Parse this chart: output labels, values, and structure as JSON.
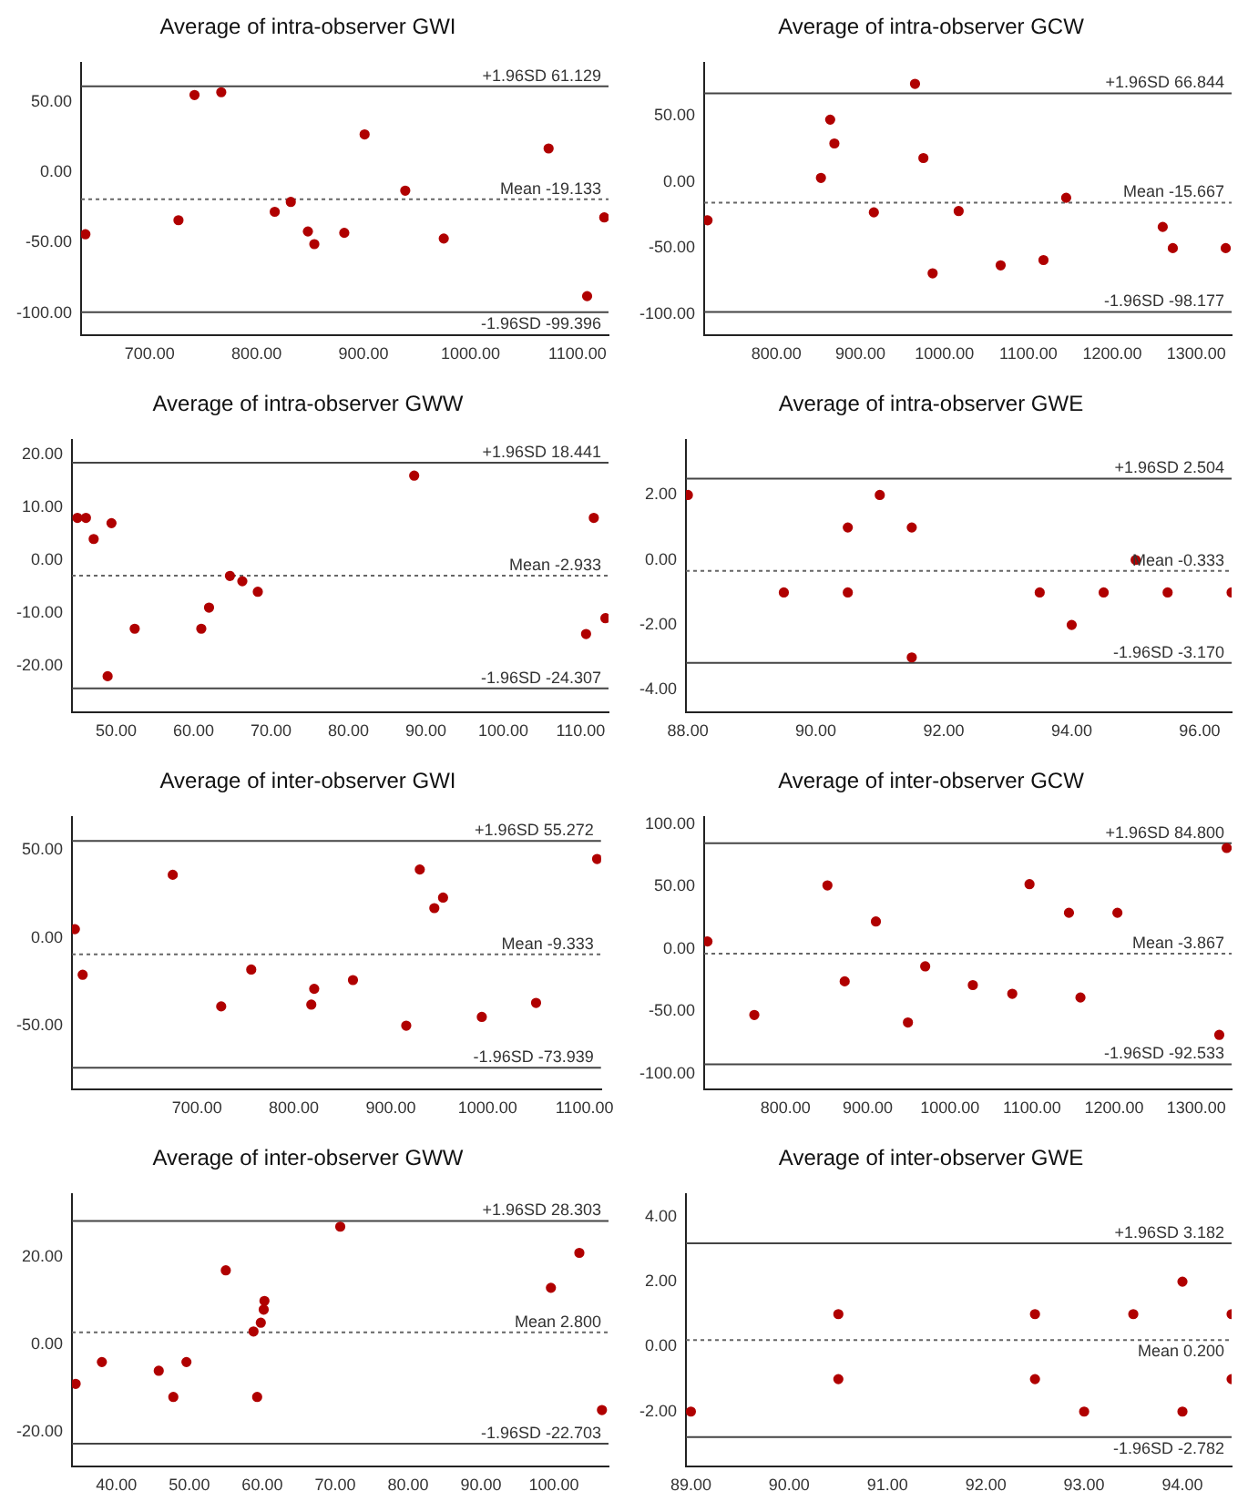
{
  "chart_data": [
    {
      "type": "scatter",
      "title": "Average of intra-observer GWI",
      "marker": "circle",
      "color": "#b00000",
      "x": [
        640,
        727,
        742,
        767,
        817,
        832,
        848,
        854,
        882,
        901,
        939,
        975,
        1073,
        1109,
        1125
      ],
      "values": [
        -44,
        -34,
        55,
        57,
        -28,
        -21,
        -42,
        -51,
        -43,
        27,
        -13,
        -47,
        17,
        -88,
        -32
      ],
      "xlim": [
        636,
        1129
      ],
      "ylim": [
        -116,
        78
      ],
      "xticks": [
        {
          "value": 700,
          "label": "700.00"
        },
        {
          "value": 800,
          "label": "800.00"
        },
        {
          "value": 900,
          "label": "900.00"
        },
        {
          "value": 1000,
          "label": "1000.00"
        },
        {
          "value": 1100,
          "label": "1100.00"
        }
      ],
      "yticks": [
        {
          "value": 50,
          "label": "50.00"
        },
        {
          "value": 0,
          "label": "0.00"
        },
        {
          "value": -50,
          "label": "-50.00"
        },
        {
          "value": -100,
          "label": "-100.00"
        }
      ],
      "ref_lines": [
        {
          "axis": "y",
          "value": 61.129,
          "label": "+1.96SD 61.129",
          "color": "#444444",
          "line_style": "solid"
        },
        {
          "axis": "y",
          "value": -19.133,
          "label": "Mean -19.133",
          "color": "#666666",
          "line_style": "dotted"
        },
        {
          "axis": "y",
          "value": -99.396,
          "label": "-1.96SD -99.396",
          "color": "#444444",
          "line_style": "solid"
        }
      ]
    },
    {
      "type": "scatter",
      "title": "Average of intra-observer GCW",
      "marker": "circle",
      "color": "#b00000",
      "x": [
        718,
        853,
        864,
        869,
        916,
        965,
        975,
        986,
        1017,
        1067,
        1118,
        1145,
        1260,
        1272,
        1335
      ],
      "values": [
        -29,
        3,
        47,
        29,
        -23,
        74,
        18,
        -69,
        -22,
        -63,
        -59,
        -12,
        -34,
        -50,
        -50
      ],
      "xlim": [
        714,
        1342
      ],
      "ylim": [
        -116,
        90
      ],
      "xticks": [
        {
          "value": 800,
          "label": "800.00"
        },
        {
          "value": 900,
          "label": "900.00"
        },
        {
          "value": 1000,
          "label": "1000.00"
        },
        {
          "value": 1100,
          "label": "1100.00"
        },
        {
          "value": 1200,
          "label": "1200.00"
        },
        {
          "value": 1300,
          "label": "1300.00"
        }
      ],
      "yticks": [
        {
          "value": 50,
          "label": "50.00"
        },
        {
          "value": 0,
          "label": "0.00"
        },
        {
          "value": -50,
          "label": "-50.00"
        },
        {
          "value": -100,
          "label": "-100.00"
        }
      ],
      "ref_lines": [
        {
          "axis": "y",
          "value": 66.844,
          "label": "+1.96SD 66.844",
          "color": "#444444",
          "line_style": "solid"
        },
        {
          "axis": "y",
          "value": -15.667,
          "label": "Mean -15.667",
          "color": "#666666",
          "line_style": "dotted"
        },
        {
          "axis": "y",
          "value": -98.177,
          "label": "-1.96SD -98.177",
          "color": "#444444",
          "line_style": "solid"
        }
      ]
    },
    {
      "type": "scatter",
      "title": "Average of intra-observer GWW",
      "marker": "circle",
      "color": "#b00000",
      "x": [
        45,
        46.1,
        47.1,
        48.9,
        49.4,
        52.4,
        61,
        62,
        64.7,
        66.3,
        68.3,
        88.5,
        110.7,
        111.7,
        113.2
      ],
      "values": [
        8,
        8,
        4,
        -22,
        7,
        -13,
        -13,
        -9,
        -3,
        -4,
        -6,
        16,
        -14,
        8,
        -11
      ],
      "xlim": [
        44.3,
        113.6
      ],
      "ylim": [
        -28.9,
        22.8
      ],
      "xticks": [
        {
          "value": 50,
          "label": "50.00"
        },
        {
          "value": 60,
          "label": "60.00"
        },
        {
          "value": 70,
          "label": "70.00"
        },
        {
          "value": 80,
          "label": "80.00"
        },
        {
          "value": 90,
          "label": "90.00"
        },
        {
          "value": 100,
          "label": "100.00"
        },
        {
          "value": 110,
          "label": "110.00"
        }
      ],
      "yticks": [
        {
          "value": 20,
          "label": "20.00"
        },
        {
          "value": 10,
          "label": "10.00"
        },
        {
          "value": 0,
          "label": "0.00"
        },
        {
          "value": -10,
          "label": "-10.00"
        },
        {
          "value": -20,
          "label": "-20.00"
        }
      ],
      "ref_lines": [
        {
          "axis": "y",
          "value": 18.441,
          "label": "+1.96SD 18.441",
          "color": "#444444",
          "line_style": "solid"
        },
        {
          "axis": "y",
          "value": -2.933,
          "label": "Mean -2.933",
          "color": "#666666",
          "line_style": "dotted"
        },
        {
          "axis": "y",
          "value": -24.307,
          "label": "-1.96SD -24.307",
          "color": "#444444",
          "line_style": "solid"
        }
      ]
    },
    {
      "type": "scatter",
      "title": "Average of intra-observer GWE",
      "marker": "circle",
      "color": "#b00000",
      "x": [
        88,
        89.5,
        90.5,
        90.5,
        91,
        91.5,
        91.5,
        93.5,
        94,
        94.5,
        95,
        95.5,
        96.5
      ],
      "values": [
        2,
        -1,
        1,
        -1,
        2,
        1,
        -3,
        -1,
        -2,
        -1,
        0,
        -1,
        -1
      ],
      "xlim": [
        87.97,
        96.5
      ],
      "ylim": [
        -4.7,
        3.7
      ],
      "xticks": [
        {
          "value": 88,
          "label": "88.00"
        },
        {
          "value": 90,
          "label": "90.00"
        },
        {
          "value": 92,
          "label": "92.00"
        },
        {
          "value": 94,
          "label": "94.00"
        },
        {
          "value": 96,
          "label": "96.00"
        }
      ],
      "yticks": [
        {
          "value": 2,
          "label": "2.00"
        },
        {
          "value": 0,
          "label": "0.00"
        },
        {
          "value": -2,
          "label": "-2.00"
        },
        {
          "value": -4,
          "label": "-4.00"
        }
      ],
      "ref_lines": [
        {
          "axis": "y",
          "value": 2.504,
          "label": "+1.96SD 2.504",
          "color": "#444444",
          "line_style": "solid"
        },
        {
          "axis": "y",
          "value": -0.333,
          "label": "Mean -0.333",
          "color": "#666666",
          "line_style": "dotted"
        },
        {
          "axis": "y",
          "value": -3.17,
          "label": "-1.96SD -3.170",
          "color": "#444444",
          "line_style": "solid"
        }
      ]
    },
    {
      "type": "scatter",
      "title": "Average of inter-observer GWI",
      "marker": "circle",
      "color": "#b00000",
      "x": [
        574,
        582,
        675,
        725,
        756,
        818,
        821,
        861,
        916,
        930,
        945,
        954,
        994,
        1050,
        1113
      ],
      "values": [
        5,
        -21,
        36,
        -39,
        -18,
        -38,
        -29,
        -24,
        -50,
        39,
        17,
        23,
        -45,
        -37,
        45
      ],
      "xlim": [
        571,
        1117
      ],
      "ylim": [
        -86.5,
        69
      ],
      "xticks": [
        {
          "value": 700,
          "label": "700.00"
        },
        {
          "value": 800,
          "label": "800.00"
        },
        {
          "value": 900,
          "label": "900.00"
        },
        {
          "value": 1000,
          "label": "1000.00"
        },
        {
          "value": 1100,
          "label": "1100.00"
        }
      ],
      "yticks": [
        {
          "value": 50,
          "label": "50.00"
        },
        {
          "value": 0,
          "label": "0.00"
        },
        {
          "value": -50,
          "label": "-50.00"
        }
      ],
      "ref_lines": [
        {
          "axis": "y",
          "value": 55.272,
          "label": "+1.96SD 55.272",
          "color": "#444444",
          "line_style": "solid"
        },
        {
          "axis": "y",
          "value": -9.333,
          "label": "Mean -9.333",
          "color": "#666666",
          "line_style": "dotted"
        },
        {
          "axis": "y",
          "value": -73.939,
          "label": "-1.96SD -73.939",
          "color": "#444444",
          "line_style": "solid"
        }
      ]
    },
    {
      "type": "scatter",
      "title": "Average of inter-observer GCW",
      "marker": "circle",
      "color": "#b00000",
      "x": [
        705,
        762,
        851,
        872,
        910,
        949,
        970,
        1028,
        1076,
        1097,
        1145,
        1159,
        1204,
        1328,
        1337
      ],
      "values": [
        6,
        -53,
        51,
        -26,
        22,
        -59,
        -14,
        -29,
        -36,
        52,
        29,
        -39,
        29,
        -69,
        81
      ],
      "xlim": [
        701,
        1343
      ],
      "ylim": [
        -113,
        106
      ],
      "xticks": [
        {
          "value": 800,
          "label": "800.00"
        },
        {
          "value": 900,
          "label": "900.00"
        },
        {
          "value": 1000,
          "label": "1000.00"
        },
        {
          "value": 1100,
          "label": "1100.00"
        },
        {
          "value": 1200,
          "label": "1200.00"
        },
        {
          "value": 1300,
          "label": "1300.00"
        }
      ],
      "yticks": [
        {
          "value": 100,
          "label": "100.00"
        },
        {
          "value": 50,
          "label": "50.00"
        },
        {
          "value": 0,
          "label": "0.00"
        },
        {
          "value": -50,
          "label": "-50.00"
        },
        {
          "value": -100,
          "label": "-100.00"
        }
      ],
      "ref_lines": [
        {
          "axis": "y",
          "value": 84.8,
          "label": "+1.96SD 84.800",
          "color": "#444444",
          "line_style": "solid"
        },
        {
          "axis": "y",
          "value": -3.867,
          "label": "Mean -3.867",
          "color": "#666666",
          "line_style": "dotted"
        },
        {
          "axis": "y",
          "value": -92.533,
          "label": "-1.96SD -92.533",
          "color": "#444444",
          "line_style": "solid"
        }
      ]
    },
    {
      "type": "scatter",
      "title": "Average of inter-observer GWW",
      "marker": "circle",
      "color": "#b00000",
      "x": [
        34.4,
        38,
        45.8,
        47.8,
        49.6,
        55,
        58.8,
        59.3,
        59.8,
        60.2,
        60.3,
        70.7,
        99.6,
        103.5,
        106.6
      ],
      "values": [
        -9,
        -4,
        -6,
        -12,
        -4,
        17,
        3,
        -12,
        5,
        8,
        10,
        27,
        13,
        21,
        -15
      ],
      "xlim": [
        33.9,
        107.5
      ],
      "ylim": [
        -28,
        34.5
      ],
      "xticks": [
        {
          "value": 40,
          "label": "40.00"
        },
        {
          "value": 50,
          "label": "50.00"
        },
        {
          "value": 60,
          "label": "60.00"
        },
        {
          "value": 70,
          "label": "70.00"
        },
        {
          "value": 80,
          "label": "80.00"
        },
        {
          "value": 90,
          "label": "90.00"
        },
        {
          "value": 100,
          "label": "100.00"
        }
      ],
      "yticks": [
        {
          "value": 20,
          "label": "20.00"
        },
        {
          "value": 0,
          "label": "0.00"
        },
        {
          "value": -20,
          "label": "-20.00"
        }
      ],
      "ref_lines": [
        {
          "axis": "y",
          "value": 28.303,
          "label": "+1.96SD 28.303",
          "color": "#444444",
          "line_style": "solid"
        },
        {
          "axis": "y",
          "value": 2.8,
          "label": "Mean 2.800",
          "color": "#666666",
          "line_style": "dotted"
        },
        {
          "axis": "y",
          "value": -22.703,
          "label": "-1.96SD -22.703",
          "color": "#444444",
          "line_style": "solid"
        }
      ]
    },
    {
      "type": "scatter",
      "title": "Average of inter-observer GWE",
      "marker": "circle",
      "color": "#b00000",
      "x": [
        89,
        90.5,
        90.5,
        92.5,
        92.5,
        93,
        93.5,
        94,
        94,
        94.5,
        94.5
      ],
      "values": [
        -2,
        1,
        -1,
        1,
        -1,
        -2,
        1,
        2,
        -2,
        1,
        -1
      ],
      "xlim": [
        88.95,
        94.5
      ],
      "ylim": [
        -3.7,
        4.7
      ],
      "xticks": [
        {
          "value": 89,
          "label": "89.00"
        },
        {
          "value": 90,
          "label": "90.00"
        },
        {
          "value": 91,
          "label": "91.00"
        },
        {
          "value": 92,
          "label": "92.00"
        },
        {
          "value": 93,
          "label": "93.00"
        },
        {
          "value": 94,
          "label": "94.00"
        }
      ],
      "yticks": [
        {
          "value": 4,
          "label": "4.00"
        },
        {
          "value": 2,
          "label": "2.00"
        },
        {
          "value": 0,
          "label": "0.00"
        },
        {
          "value": -2,
          "label": "-2.00"
        }
      ],
      "ref_lines": [
        {
          "axis": "y",
          "value": 3.182,
          "label": "+1.96SD 3.182",
          "color": "#444444",
          "line_style": "solid"
        },
        {
          "axis": "y",
          "value": 0.2,
          "label": "Mean 0.200",
          "color": "#666666",
          "line_style": "dotted"
        },
        {
          "axis": "y",
          "value": -2.782,
          "label": "-1.96SD -2.782",
          "color": "#444444",
          "line_style": "solid"
        }
      ]
    }
  ]
}
